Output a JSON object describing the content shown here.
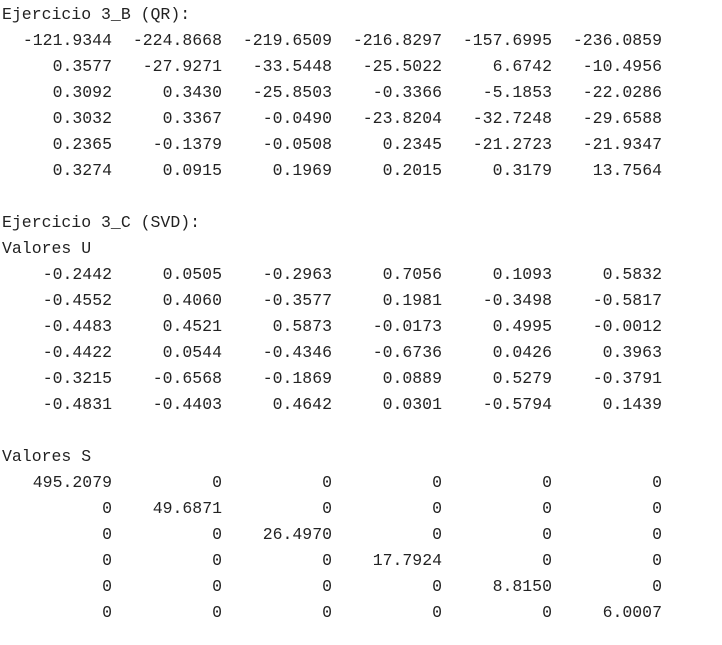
{
  "console": {
    "ej3b": {
      "title": "Ejercicio 3_B (QR):",
      "rows": [
        [
          "-121.9344",
          "-224.8668",
          "-219.6509",
          "-216.8297",
          "-157.6995",
          "-236.0859"
        ],
        [
          "0.3577",
          "-27.9271",
          "-33.5448",
          "-25.5022",
          "6.6742",
          "-10.4956"
        ],
        [
          "0.3092",
          "0.3430",
          "-25.8503",
          "-0.3366",
          "-5.1853",
          "-22.0286"
        ],
        [
          "0.3032",
          "0.3367",
          "-0.0490",
          "-23.8204",
          "-32.7248",
          "-29.6588"
        ],
        [
          "0.2365",
          "-0.1379",
          "-0.0508",
          "0.2345",
          "-21.2723",
          "-21.9347"
        ],
        [
          "0.3274",
          "0.0915",
          "0.1969",
          "0.2015",
          "0.3179",
          "13.7564"
        ]
      ]
    },
    "ej3c": {
      "title": "Ejercicio 3_C (SVD):",
      "u_label": "Valores U",
      "u_rows": [
        [
          "-0.2442",
          "0.0505",
          "-0.2963",
          "0.7056",
          "0.1093",
          "0.5832"
        ],
        [
          "-0.4552",
          "0.4060",
          "-0.3577",
          "0.1981",
          "-0.3498",
          "-0.5817"
        ],
        [
          "-0.4483",
          "0.4521",
          "0.5873",
          "-0.0173",
          "0.4995",
          "-0.0012"
        ],
        [
          "-0.4422",
          "0.0544",
          "-0.4346",
          "-0.6736",
          "0.0426",
          "0.3963"
        ],
        [
          "-0.3215",
          "-0.6568",
          "-0.1869",
          "0.0889",
          "0.5279",
          "-0.3791"
        ],
        [
          "-0.4831",
          "-0.4403",
          "0.4642",
          "0.0301",
          "-0.5794",
          "0.1439"
        ]
      ],
      "s_label": "Valores S",
      "s_rows": [
        [
          "495.2079",
          "0",
          "0",
          "0",
          "0",
          "0"
        ],
        [
          "0",
          "49.6871",
          "0",
          "0",
          "0",
          "0"
        ],
        [
          "0",
          "0",
          "26.4970",
          "0",
          "0",
          "0"
        ],
        [
          "0",
          "0",
          "0",
          "17.7924",
          "0",
          "0"
        ],
        [
          "0",
          "0",
          "0",
          "0",
          "8.8150",
          "0"
        ],
        [
          "0",
          "0",
          "0",
          "0",
          "0",
          "6.0007"
        ]
      ]
    }
  }
}
